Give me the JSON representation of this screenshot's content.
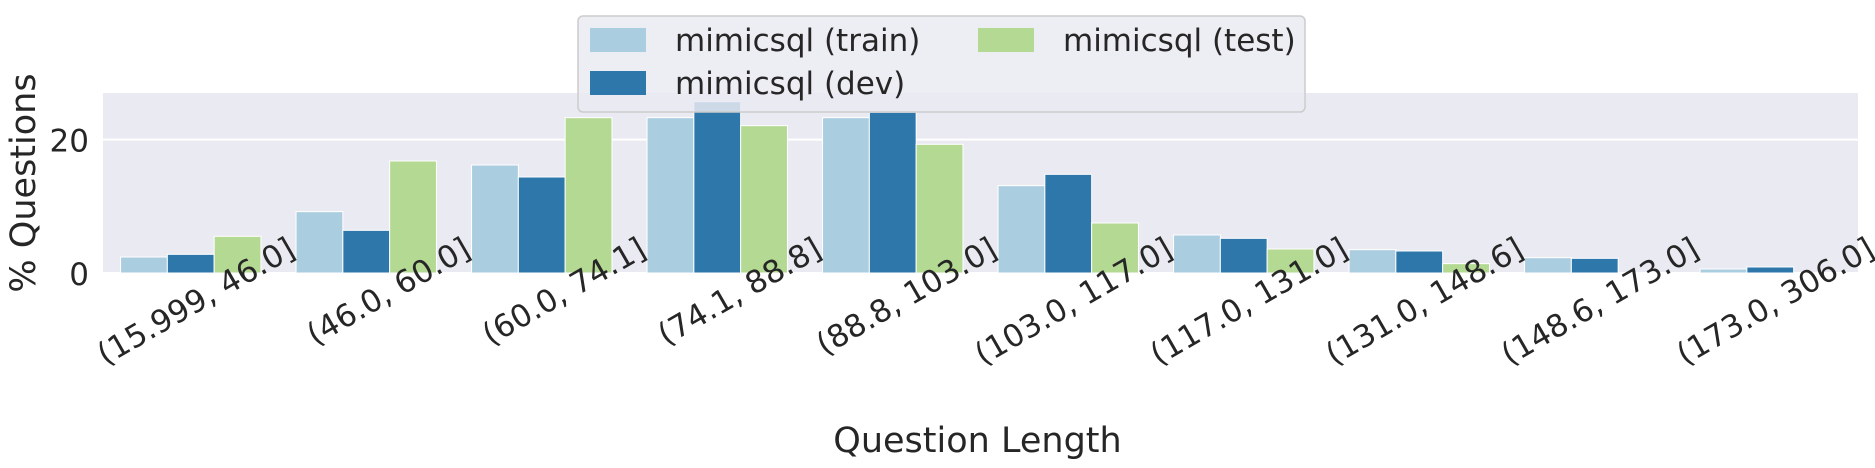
{
  "chart_data": {
    "type": "bar",
    "xlabel": "Question Length",
    "ylabel": "% Questions",
    "categories": [
      "(15.999, 46.0]",
      "(46.0, 60.0]",
      "(60.0, 74.1]",
      "(74.1, 88.8]",
      "(88.8, 103.0]",
      "(103.0, 117.0]",
      "(117.0, 131.0]",
      "(131.0, 148.6]",
      "(148.6, 173.0]",
      "(173.0, 306.0]"
    ],
    "series": [
      {
        "name": "mimicsql (train)",
        "color": "#abcde0",
        "values": [
          2.4,
          9.2,
          16.2,
          23.3,
          23.3,
          13.1,
          5.7,
          3.5,
          2.3,
          0.6
        ]
      },
      {
        "name": "mimicsql (dev)",
        "color": "#2e77aa",
        "values": [
          2.8,
          6.4,
          14.4,
          25.7,
          24.1,
          14.8,
          5.2,
          3.3,
          2.2,
          0.9
        ]
      },
      {
        "name": "mimicsql (test)",
        "color": "#b3d993",
        "values": [
          5.5,
          16.8,
          23.3,
          22.1,
          19.3,
          7.5,
          3.6,
          1.4,
          0.0,
          0.0
        ]
      }
    ],
    "yticks": [
      0,
      20
    ],
    "ylim": [
      0,
      27
    ],
    "grid": "horizontal",
    "tick_label_rotation": 30,
    "legend": {
      "placement": "upper center",
      "columns": 2
    },
    "background_color": "#eaeaf2"
  }
}
